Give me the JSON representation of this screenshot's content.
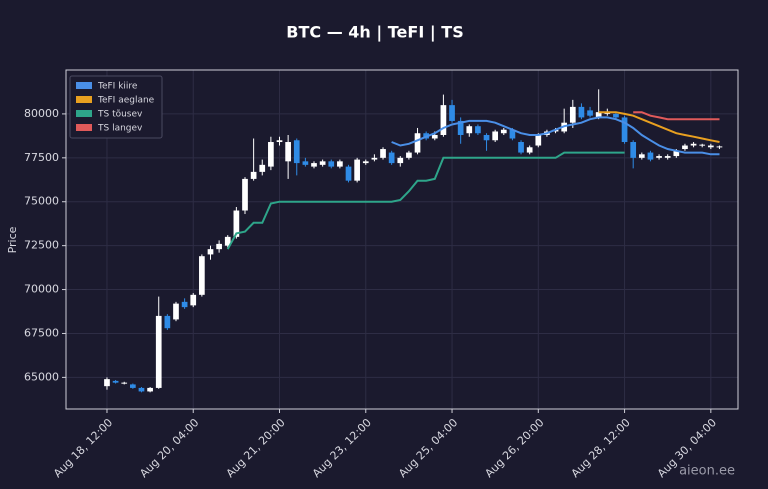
{
  "chart_data": {
    "type": "candlestick",
    "title": "BTC — 4h  |  TeFI  |  TS",
    "ylabel": "Price",
    "watermark": "aieon.ee",
    "x": [
      "Aug 18, 12:00",
      "Aug 18, 16:00",
      "Aug 18, 20:00",
      "Aug 19, 00:00",
      "Aug 19, 04:00",
      "Aug 19, 08:00",
      "Aug 19, 12:00",
      "Aug 19, 16:00",
      "Aug 19, 20:00",
      "Aug 20, 00:00",
      "Aug 20, 04:00",
      "Aug 20, 08:00",
      "Aug 20, 12:00",
      "Aug 20, 16:00",
      "Aug 20, 20:00",
      "Aug 21, 00:00",
      "Aug 21, 04:00",
      "Aug 21, 08:00",
      "Aug 21, 12:00",
      "Aug 21, 16:00",
      "Aug 21, 20:00",
      "Aug 22, 00:00",
      "Aug 22, 04:00",
      "Aug 22, 08:00",
      "Aug 22, 12:00",
      "Aug 22, 16:00",
      "Aug 22, 20:00",
      "Aug 23, 00:00",
      "Aug 23, 04:00",
      "Aug 23, 08:00",
      "Aug 23, 12:00",
      "Aug 23, 16:00",
      "Aug 23, 20:00",
      "Aug 24, 00:00",
      "Aug 24, 04:00",
      "Aug 24, 08:00",
      "Aug 24, 12:00",
      "Aug 24, 16:00",
      "Aug 24, 20:00",
      "Aug 25, 00:00",
      "Aug 25, 04:00",
      "Aug 25, 08:00",
      "Aug 25, 12:00",
      "Aug 25, 16:00",
      "Aug 25, 20:00",
      "Aug 26, 00:00",
      "Aug 26, 04:00",
      "Aug 26, 08:00",
      "Aug 26, 12:00",
      "Aug 26, 16:00",
      "Aug 26, 20:00",
      "Aug 27, 00:00",
      "Aug 27, 04:00",
      "Aug 27, 08:00",
      "Aug 27, 12:00",
      "Aug 27, 16:00",
      "Aug 27, 20:00",
      "Aug 28, 00:00",
      "Aug 28, 04:00",
      "Aug 28, 08:00",
      "Aug 28, 12:00",
      "Aug 28, 16:00",
      "Aug 28, 20:00",
      "Aug 29, 00:00",
      "Aug 29, 04:00",
      "Aug 29, 08:00",
      "Aug 29, 12:00",
      "Aug 29, 16:00",
      "Aug 29, 20:00",
      "Aug 30, 00:00",
      "Aug 30, 04:00",
      "Aug 30, 08:00"
    ],
    "open": [
      64500,
      64800,
      64650,
      64600,
      64400,
      64200,
      64400,
      68500,
      68300,
      69300,
      69100,
      69700,
      72000,
      72300,
      72500,
      73000,
      74500,
      76300,
      76700,
      77000,
      78400,
      77300,
      78500,
      77300,
      77000,
      77100,
      77300,
      77000,
      77000,
      76200,
      77200,
      77400,
      77500,
      77800,
      77200,
      77500,
      77800,
      78900,
      78600,
      78800,
      80500,
      79600,
      78900,
      79300,
      78800,
      78500,
      78900,
      79100,
      78400,
      77800,
      78200,
      78800,
      79000,
      79000,
      79500,
      80400,
      80200,
      79800,
      80000,
      80000,
      79800,
      78400,
      77500,
      77800,
      77500,
      77500,
      77600,
      78000,
      78200,
      78200,
      78100,
      78100
    ],
    "high": [
      65000,
      64850,
      64750,
      64650,
      64450,
      64450,
      69600,
      68600,
      69300,
      69500,
      69800,
      72000,
      72500,
      72800,
      73100,
      74700,
      76400,
      78600,
      77400,
      78700,
      78700,
      78800,
      78600,
      77500,
      77300,
      77400,
      77400,
      77400,
      77100,
      77500,
      77400,
      77700,
      78100,
      77900,
      77600,
      77900,
      79200,
      79000,
      79000,
      81100,
      80800,
      79800,
      79400,
      79400,
      78900,
      79100,
      79200,
      79200,
      78500,
      78200,
      78900,
      79100,
      79200,
      80300,
      80800,
      80600,
      80400,
      81400,
      80300,
      80100,
      79900,
      78500,
      77800,
      77900,
      77700,
      77700,
      78000,
      78300,
      78400,
      78300,
      78300,
      78200
    ],
    "low": [
      64300,
      64650,
      64600,
      64350,
      64150,
      64150,
      64350,
      67700,
      68200,
      68900,
      69000,
      69600,
      71700,
      72100,
      72400,
      72900,
      74300,
      76200,
      76500,
      76800,
      78200,
      76300,
      76500,
      77000,
      76900,
      77000,
      76900,
      76900,
      76100,
      76100,
      77100,
      77300,
      77400,
      77100,
      77000,
      77400,
      77700,
      78500,
      78500,
      78700,
      79500,
      78300,
      78700,
      78800,
      77900,
      78400,
      78800,
      78500,
      77700,
      77700,
      78100,
      78700,
      78900,
      78900,
      79200,
      79700,
      79800,
      79700,
      79900,
      79700,
      78300,
      76900,
      77400,
      77300,
      77400,
      77400,
      77500,
      77900,
      78100,
      78100,
      78000,
      78000
    ],
    "close": [
      64900,
      64700,
      64700,
      64400,
      64200,
      64400,
      68500,
      67800,
      69200,
      69000,
      69700,
      71900,
      72300,
      72600,
      73000,
      74500,
      76300,
      76700,
      77100,
      78400,
      78500,
      78400,
      77200,
      77100,
      77200,
      77300,
      77000,
      77300,
      76200,
      77400,
      77300,
      77500,
      78000,
      77200,
      77500,
      77800,
      78900,
      78600,
      78800,
      80500,
      79600,
      78800,
      79300,
      78900,
      78500,
      79000,
      79100,
      78600,
      77800,
      78100,
      78800,
      79000,
      79100,
      79500,
      80400,
      79800,
      79900,
      80100,
      80100,
      79800,
      78400,
      77500,
      77700,
      77400,
      77600,
      77600,
      77900,
      78200,
      78300,
      78250,
      78200,
      78150
    ],
    "up_color": "#ffffff",
    "down_color": "#2f8be6",
    "series": [
      {
        "name": "TeFI kiire",
        "color": "#4a8fe7",
        "values": [
          null,
          null,
          null,
          null,
          null,
          null,
          null,
          null,
          null,
          null,
          null,
          null,
          null,
          null,
          null,
          null,
          null,
          null,
          null,
          null,
          null,
          null,
          null,
          null,
          null,
          null,
          null,
          null,
          null,
          null,
          null,
          null,
          null,
          78400,
          78200,
          78300,
          78500,
          78700,
          78900,
          79200,
          79400,
          79500,
          79600,
          79600,
          79600,
          79500,
          79300,
          79100,
          78900,
          78800,
          78800,
          78900,
          79100,
          79300,
          79400,
          79500,
          79700,
          79800,
          79800,
          79700,
          79500,
          79200,
          78800,
          78500,
          78200,
          78000,
          77900,
          77800,
          77800,
          77800,
          77700,
          77700
        ]
      },
      {
        "name": "TeFI aeglane",
        "color": "#e8a020",
        "values": [
          null,
          null,
          null,
          null,
          null,
          null,
          null,
          null,
          null,
          null,
          null,
          null,
          null,
          null,
          null,
          null,
          null,
          null,
          null,
          null,
          null,
          null,
          null,
          null,
          null,
          null,
          null,
          null,
          null,
          null,
          null,
          null,
          null,
          null,
          null,
          null,
          null,
          null,
          null,
          null,
          null,
          null,
          null,
          null,
          null,
          null,
          null,
          null,
          null,
          null,
          null,
          null,
          null,
          null,
          null,
          null,
          null,
          80100,
          80100,
          80100,
          80000,
          79900,
          79700,
          79500,
          79300,
          79100,
          78900,
          78800,
          78700,
          78600,
          78500,
          78400
        ]
      },
      {
        "name": "TS tõusev",
        "color": "#2ea58a",
        "values": [
          null,
          null,
          null,
          null,
          null,
          null,
          null,
          null,
          null,
          null,
          null,
          null,
          null,
          null,
          72300,
          73200,
          73300,
          73800,
          73800,
          74900,
          75000,
          75000,
          75000,
          75000,
          75000,
          75000,
          75000,
          75000,
          75000,
          75000,
          75000,
          75000,
          75000,
          75000,
          75100,
          75600,
          76200,
          76200,
          76300,
          77500,
          77500,
          77500,
          77500,
          77500,
          77500,
          77500,
          77500,
          77500,
          77500,
          77500,
          77500,
          77500,
          77500,
          77800,
          77800,
          77800,
          77800,
          77800,
          77800,
          77800,
          77800,
          null,
          null,
          null,
          null,
          null,
          null,
          null,
          null,
          null,
          null,
          null
        ]
      },
      {
        "name": "TS langev",
        "color": "#e05a5a",
        "values": [
          null,
          null,
          null,
          null,
          null,
          null,
          null,
          null,
          null,
          null,
          null,
          null,
          null,
          null,
          null,
          null,
          null,
          null,
          null,
          null,
          null,
          null,
          null,
          null,
          null,
          null,
          null,
          null,
          null,
          null,
          null,
          null,
          null,
          null,
          null,
          null,
          null,
          null,
          null,
          null,
          null,
          null,
          null,
          null,
          null,
          null,
          null,
          null,
          null,
          null,
          null,
          null,
          null,
          null,
          null,
          null,
          null,
          null,
          null,
          null,
          null,
          80100,
          80100,
          79900,
          79800,
          79700,
          79700,
          79700,
          79700,
          79700,
          79700,
          79700
        ]
      }
    ],
    "ylim": [
      63200,
      82500
    ],
    "yticks": [
      65000,
      67500,
      70000,
      72500,
      75000,
      77500,
      80000
    ],
    "xticks": [
      "Aug 18, 12:00",
      "Aug 20, 04:00",
      "Aug 21, 20:00",
      "Aug 23, 12:00",
      "Aug 25, 04:00",
      "Aug 26, 20:00",
      "Aug 28, 12:00",
      "Aug 30, 04:00"
    ],
    "grid": true,
    "legend": "upper left"
  }
}
